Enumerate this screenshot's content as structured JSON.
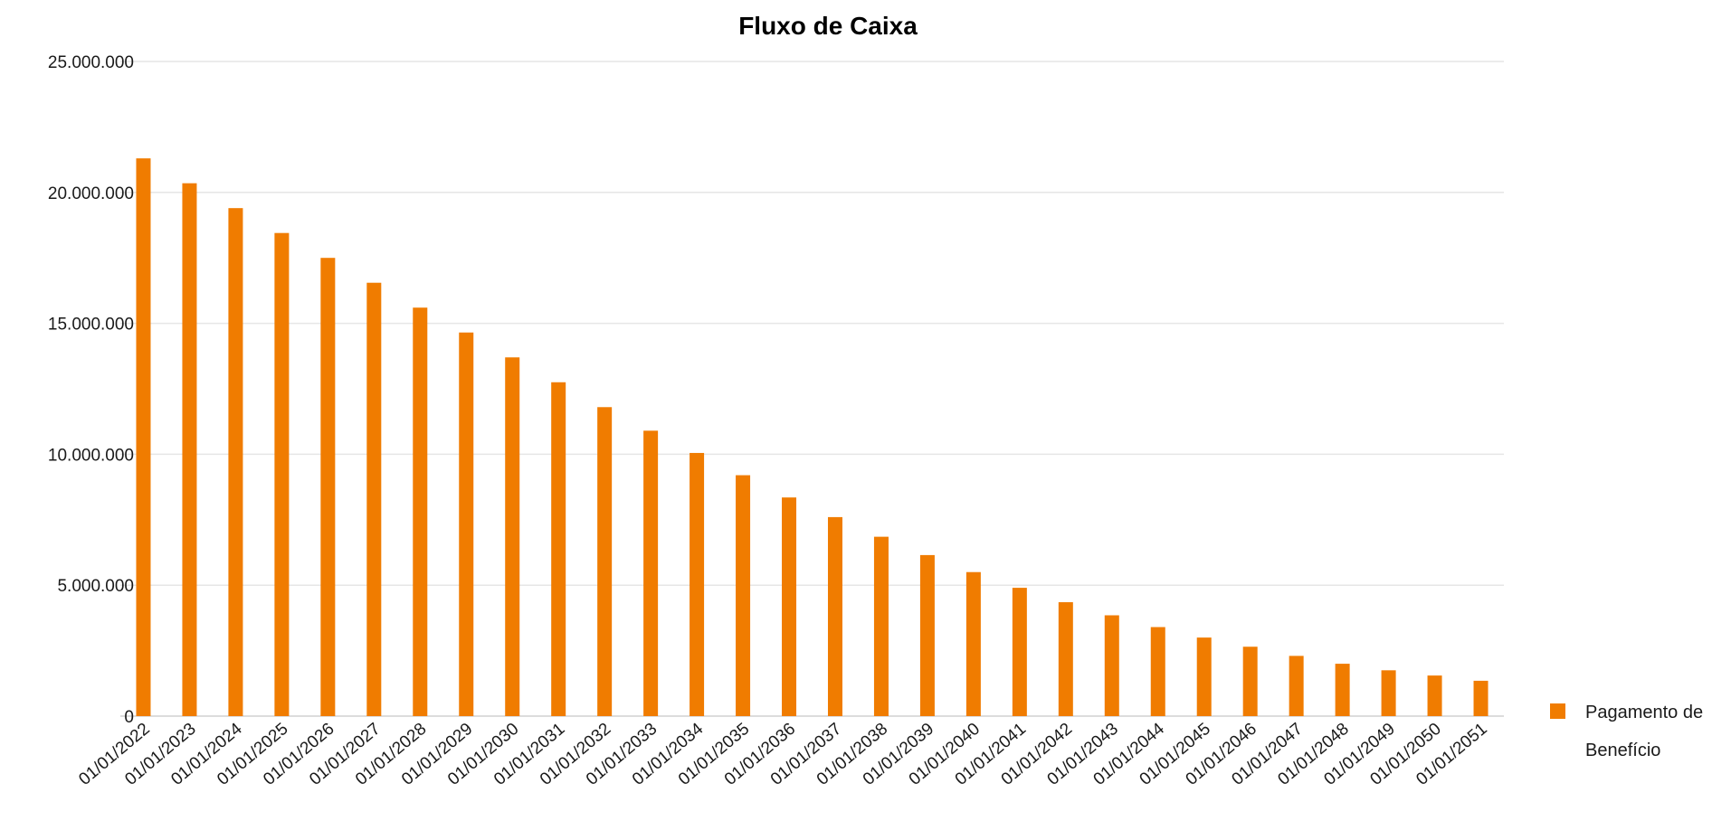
{
  "chart_data": {
    "type": "bar",
    "title": "Fluxo de Caixa",
    "xlabel": "",
    "ylabel": "",
    "ylim": [
      0,
      25000000
    ],
    "yticks": [
      0,
      5000000,
      10000000,
      15000000,
      20000000,
      25000000
    ],
    "ytick_labels": [
      "0",
      "5.000.000",
      "10.000.000",
      "15.000.000",
      "20.000.000",
      "25.000.000"
    ],
    "grid": true,
    "legend_position": "right",
    "categories": [
      "01/01/2022",
      "01/01/2023",
      "01/01/2024",
      "01/01/2025",
      "01/01/2026",
      "01/01/2027",
      "01/01/2028",
      "01/01/2029",
      "01/01/2030",
      "01/01/2031",
      "01/01/2032",
      "01/01/2033",
      "01/01/2034",
      "01/01/2035",
      "01/01/2036",
      "01/01/2037",
      "01/01/2038",
      "01/01/2039",
      "01/01/2040",
      "01/01/2041",
      "01/01/2042",
      "01/01/2043",
      "01/01/2044",
      "01/01/2045",
      "01/01/2046",
      "01/01/2047",
      "01/01/2048",
      "01/01/2049",
      "01/01/2050",
      "01/01/2051"
    ],
    "series": [
      {
        "name": "Pagamento de Benefício",
        "color": "#f07c00",
        "values": [
          21300000,
          20350000,
          19400000,
          18450000,
          17500000,
          16550000,
          15600000,
          14650000,
          13700000,
          12750000,
          11800000,
          10900000,
          10050000,
          9200000,
          8350000,
          7600000,
          6850000,
          6150000,
          5500000,
          4900000,
          4350000,
          3850000,
          3400000,
          3000000,
          2650000,
          2300000,
          2000000,
          1750000,
          1550000,
          1350000
        ]
      }
    ]
  }
}
